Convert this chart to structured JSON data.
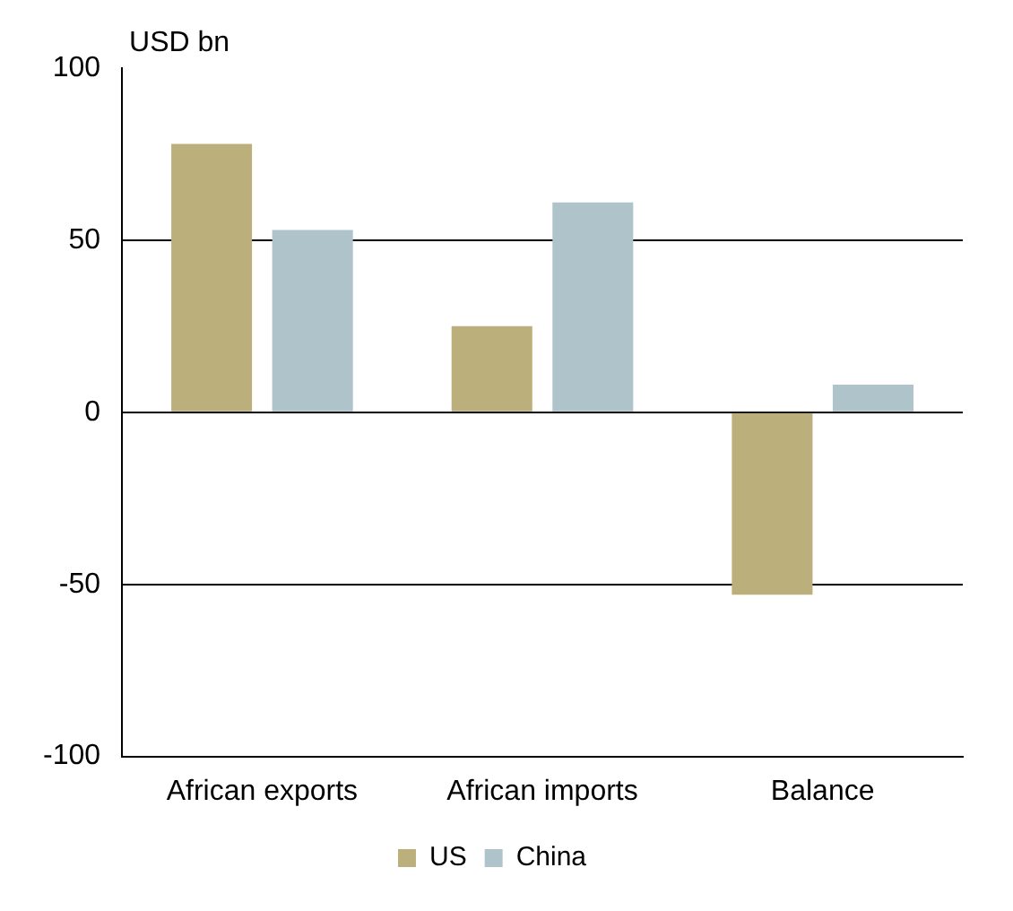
{
  "chart_data": {
    "type": "bar",
    "ylabel": "USD bn",
    "categories": [
      "African exports",
      "African imports",
      "Balance"
    ],
    "series": [
      {
        "name": "US",
        "color": "#bbb07c",
        "values": [
          78,
          25,
          -53
        ]
      },
      {
        "name": "China",
        "color": "#afc3cb",
        "values": [
          53,
          61,
          8
        ]
      }
    ],
    "ylim": [
      -100,
      100
    ],
    "yticks": [
      -100,
      -50,
      0,
      50,
      100
    ],
    "grid": "y",
    "legend": "bottom"
  }
}
